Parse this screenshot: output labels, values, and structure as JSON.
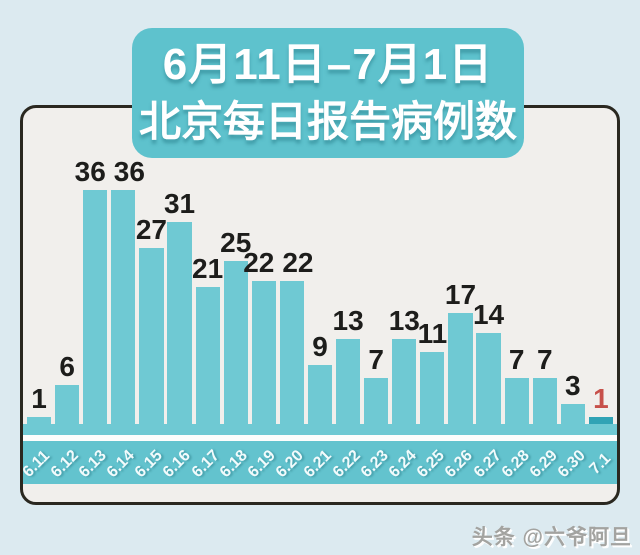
{
  "page": {
    "background": "#dceaf0"
  },
  "banner": {
    "line1": "6月11日–7月1日",
    "line2": "北京每日报告病例数",
    "background": "#5ec2cd",
    "text_color": "#ffffff"
  },
  "watermark": {
    "text": "头条 @六爷阿旦"
  },
  "chart_data": {
    "type": "bar",
    "title": "6月11日–7月1日 北京每日报告病例数",
    "xlabel": "",
    "ylabel": "",
    "categories": [
      "6.11",
      "6.12",
      "6.13",
      "6.14",
      "6.15",
      "6.16",
      "6.17",
      "6.18",
      "6.19",
      "6.20",
      "6.21",
      "6.22",
      "6.23",
      "6.24",
      "6.25",
      "6.26",
      "6.27",
      "6.28",
      "6.29",
      "6.30",
      "7.1"
    ],
    "values": [
      1,
      6,
      36,
      36,
      27,
      31,
      21,
      25,
      22,
      22,
      9,
      13,
      7,
      13,
      11,
      17,
      14,
      7,
      7,
      3,
      1
    ],
    "ylim": [
      0,
      36
    ],
    "grid": false,
    "legend": false,
    "bar_color": "#6fc9d3",
    "axis_strip_color": "#63c3ce",
    "value_label_color": "#1d1d1b",
    "axis_label_color": "#f2fbfc",
    "highlight_index": 20,
    "highlight_bar_color": "#31a3b5",
    "highlight_label_color": "#c7504a"
  }
}
